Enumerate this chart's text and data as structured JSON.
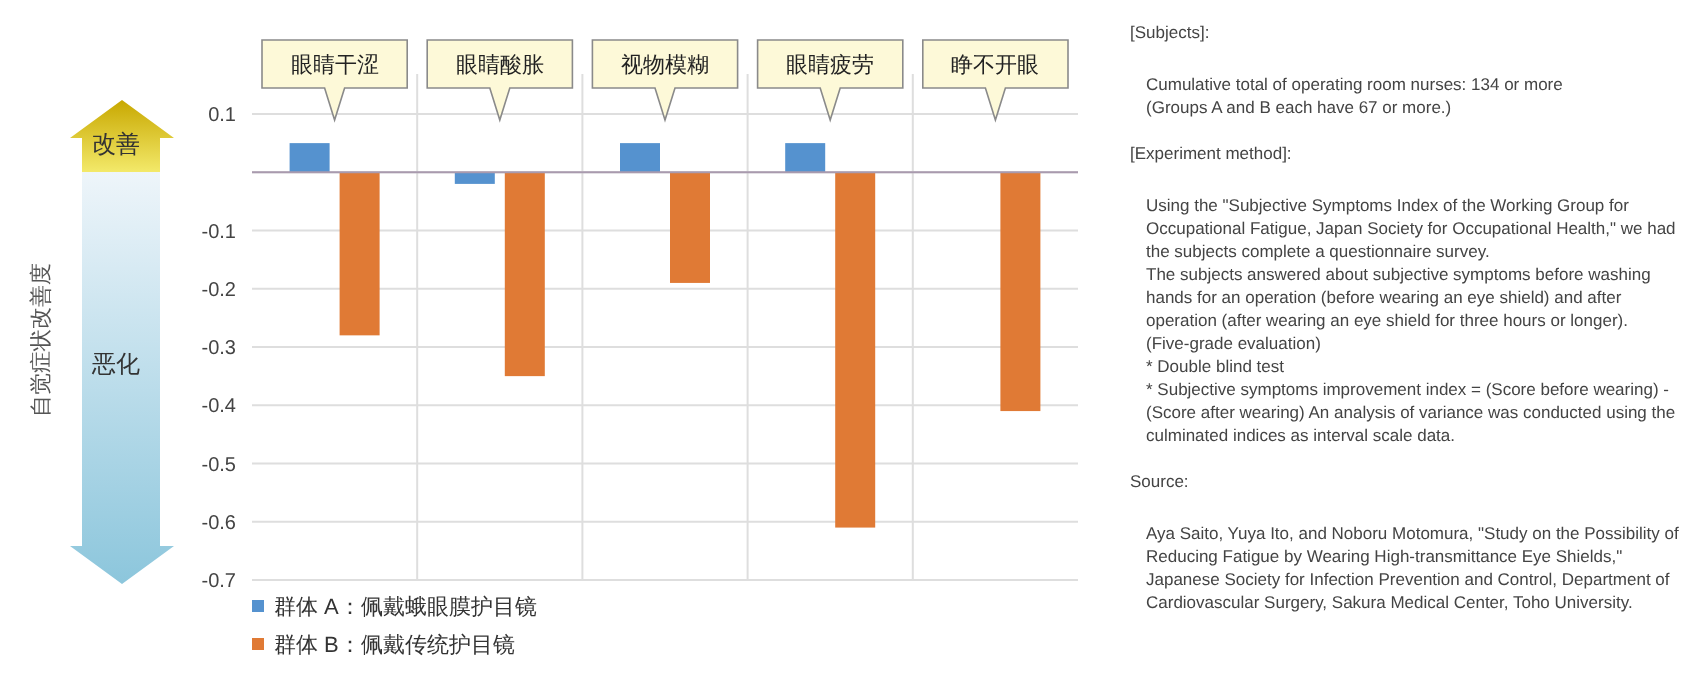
{
  "chart_data": {
    "type": "bar",
    "categories": [
      "眼睛干涩",
      "眼睛酸胀",
      "视物模糊",
      "眼睛疲劳",
      "睁不开眼"
    ],
    "series": [
      {
        "name": "群体 A：佩戴蛾眼膜护目镜",
        "color": "#5592cf",
        "values": [
          0.05,
          -0.02,
          0.05,
          0.05,
          null
        ]
      },
      {
        "name": "群体 B：佩戴传统护目镜",
        "color": "#e07a35",
        "values": [
          -0.28,
          -0.35,
          -0.19,
          -0.61,
          -0.41
        ]
      }
    ],
    "ylim": [
      -0.7,
      0.1
    ],
    "yticks": [
      0.1,
      {
        "value": 0,
        "label": null
      },
      -0.1,
      -0.2,
      -0.3,
      -0.4,
      -0.5,
      -0.6,
      -0.7
    ],
    "grid": true,
    "legend": "bottom left",
    "annotations": [
      "改善",
      "恶化",
      "自觉症状改善度",
      "[Subjects]:",
      "Cumulative total of operating room nurses: 134 or more\n(Groups A and B each have 67 or more.)",
      "[Experiment method]:",
      "Using the \"Subjective Symptoms Index of the Working Group for Occupational Fatigue, Japan Society for Occupational Health,\" we had the subjects complete a questionnaire survey.\nThe subjects answered about subjective symptoms before washing hands for an operation (before wearing an eye shield) and after operation (after wearing an eye shield for three hours or longer). (Five-grade evaluation)\n* Double blind test\n* Subjective symptoms improvement index = (Score before wearing) - (Score after wearing) An analysis of variance was conducted using the culminated indices as interval scale data.",
      "Source:",
      "Aya Saito, Yuya Ito, and Noboru Motomura, \"Study on the Possibility of Reducing Fatigue by Wearing High-transmittance Eye Shields,\"\nJapanese Society for Infection Prevention and Control, Department of Cardiovascular Surgery, Sakura Medical Center, Toho University."
    ]
  }
}
